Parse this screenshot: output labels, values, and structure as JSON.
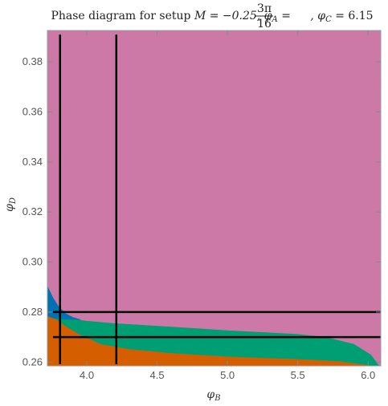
{
  "chart_data": {
    "type": "area",
    "title": {
      "prefix": "Phase diagram for setup ",
      "math": "M = −0.25, φ",
      "sub_A": "A",
      "eq_A": " = ",
      "frac_num": "3π",
      "frac_den": "16",
      "rest": ", φ",
      "sub_C": "C",
      "eq_C": " = 6.15"
    },
    "xlabel": {
      "main": "φ",
      "sub": "B"
    },
    "ylabel": {
      "main": "φ",
      "sub": "D"
    },
    "xlim": [
      3.72,
      6.09
    ],
    "ylim": [
      0.2585,
      0.3925
    ],
    "x_ticks": [
      4.0,
      4.5,
      5.0,
      5.5,
      6.0
    ],
    "x_tick_labels": [
      "4.0",
      "4.5",
      "5.0",
      "5.5",
      "6.0"
    ],
    "y_ticks": [
      0.26,
      0.28,
      0.3,
      0.32,
      0.34,
      0.36,
      0.38
    ],
    "y_tick_labels": [
      "0.26",
      "0.28",
      "0.30",
      "0.32",
      "0.34",
      "0.36",
      "0.38"
    ],
    "regions": [
      {
        "name": "pink",
        "color": "#cc79a7",
        "points": [
          [
            3.72,
            0.2585
          ],
          [
            6.09,
            0.2585
          ],
          [
            6.09,
            0.3925
          ],
          [
            3.72,
            0.3925
          ]
        ]
      },
      {
        "name": "green",
        "color": "#009e73",
        "points": [
          [
            3.72,
            0.2585
          ],
          [
            6.08,
            0.2585
          ],
          [
            6.02,
            0.263
          ],
          [
            5.9,
            0.2672
          ],
          [
            5.7,
            0.27
          ],
          [
            5.5,
            0.2712
          ],
          [
            5.0,
            0.2727
          ],
          [
            4.5,
            0.2745
          ],
          [
            4.2,
            0.2755
          ],
          [
            4.0,
            0.2765
          ],
          [
            3.85,
            0.2775
          ],
          [
            3.72,
            0.2783
          ]
        ]
      },
      {
        "name": "blue",
        "color": "#0072b2",
        "points": [
          [
            3.72,
            0.2775
          ],
          [
            3.72,
            0.2905
          ],
          [
            3.76,
            0.2858
          ],
          [
            3.8,
            0.2823
          ],
          [
            3.85,
            0.2795
          ],
          [
            3.9,
            0.278
          ],
          [
            3.95,
            0.2772
          ],
          [
            3.96,
            0.2768
          ]
        ]
      },
      {
        "name": "orange",
        "color": "#d55e00",
        "points": [
          [
            3.72,
            0.2585
          ],
          [
            6.04,
            0.2585
          ],
          [
            5.8,
            0.2603
          ],
          [
            5.5,
            0.2612
          ],
          [
            5.0,
            0.2622
          ],
          [
            4.6,
            0.2636
          ],
          [
            4.3,
            0.2652
          ],
          [
            4.1,
            0.2672
          ],
          [
            3.95,
            0.271
          ],
          [
            3.85,
            0.2743
          ],
          [
            3.78,
            0.2772
          ],
          [
            3.72,
            0.2783
          ]
        ]
      }
    ],
    "vertical_lines": [
      3.81,
      4.21
    ],
    "horizontal_lines": [
      0.27,
      0.28
    ],
    "line_color": "#000000"
  }
}
